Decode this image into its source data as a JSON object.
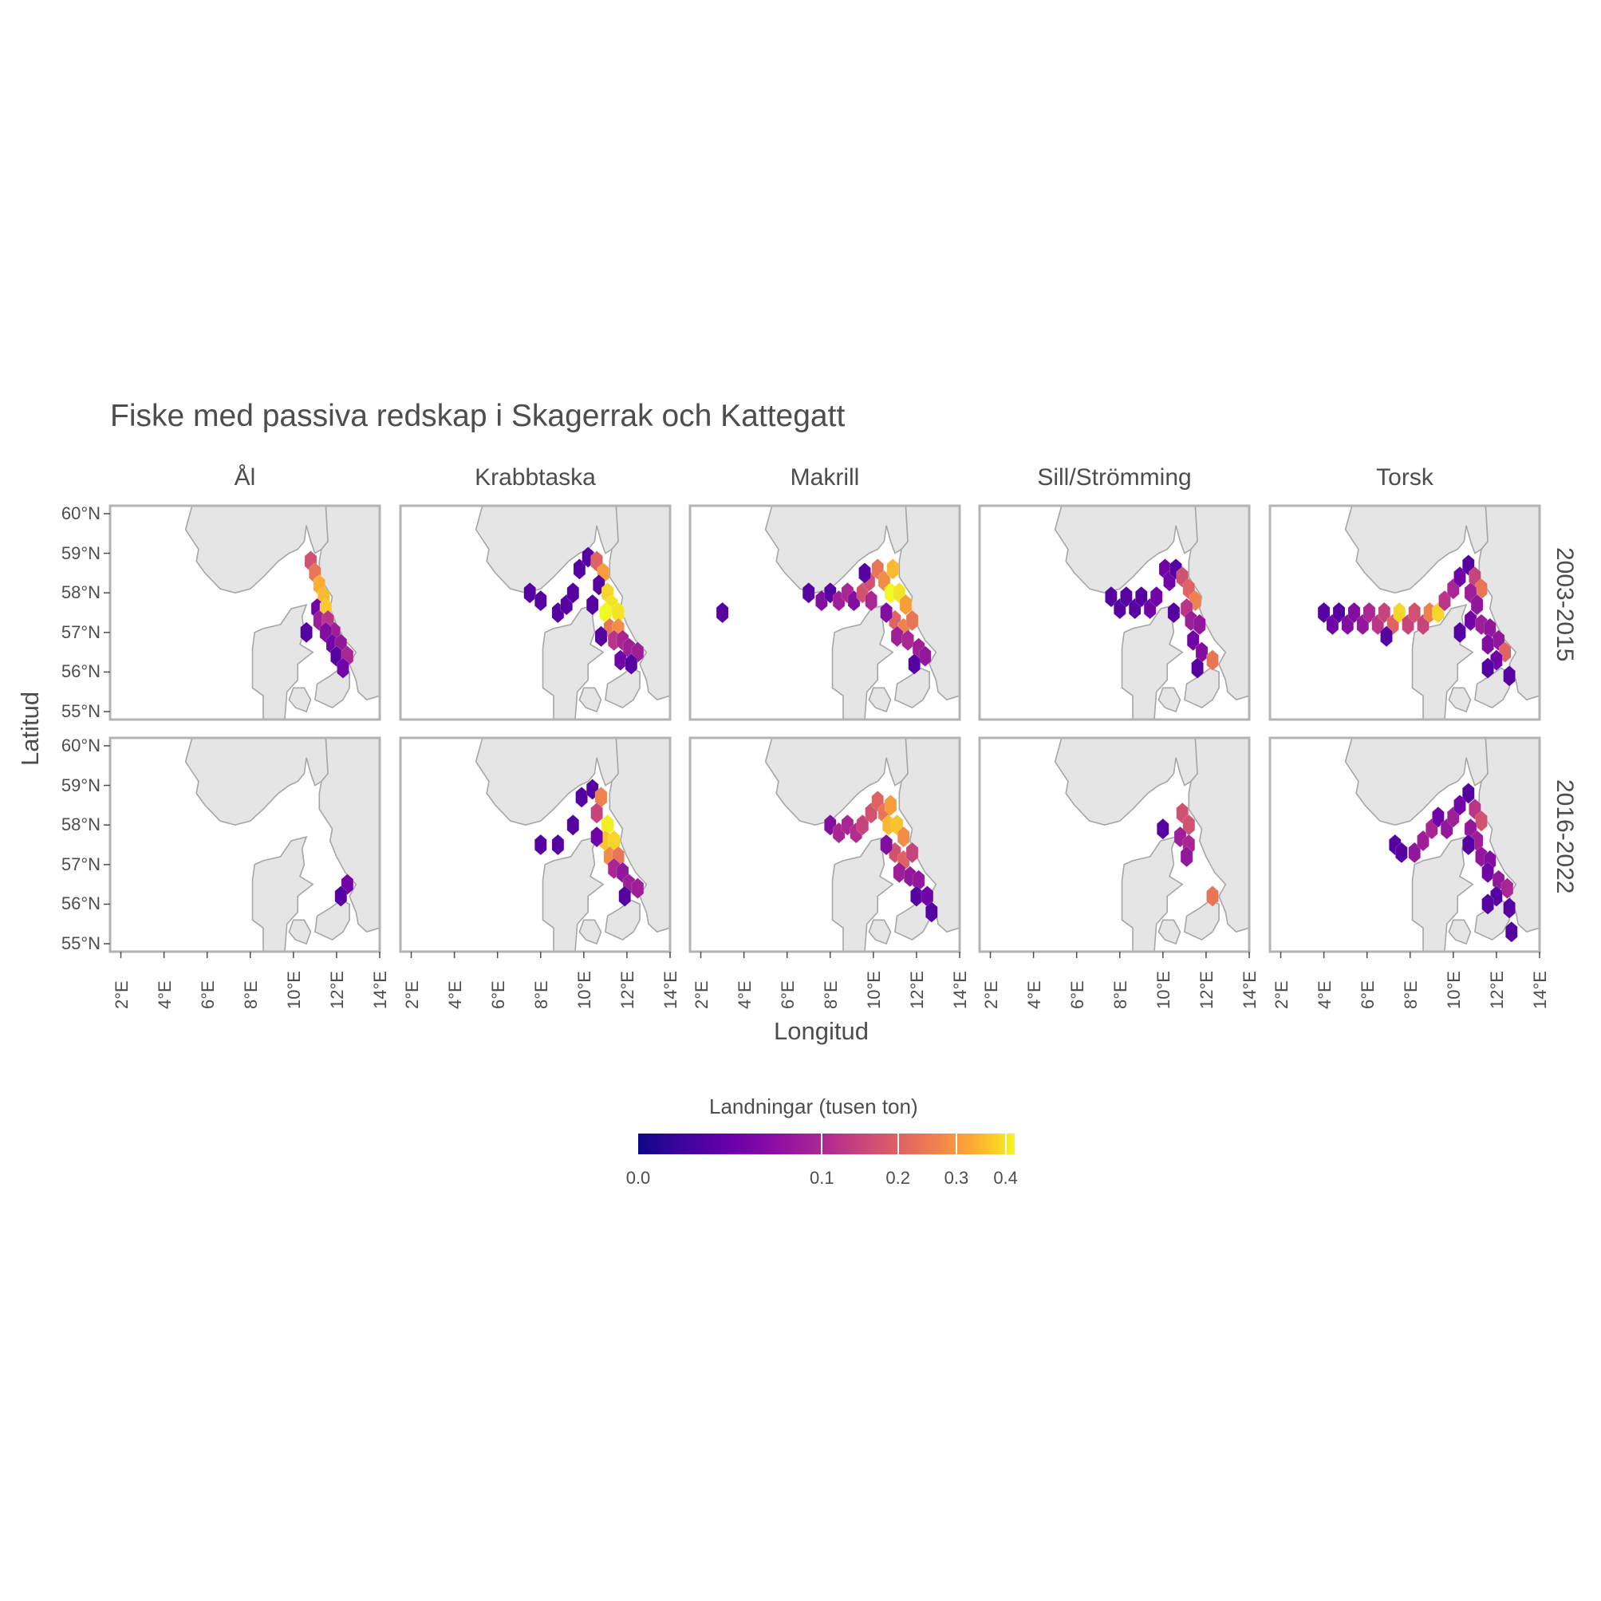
{
  "title": "Fiske med passiva redskap i Skagerrak och Kattegatt",
  "chart_data": {
    "type": "heatmap",
    "subtype": "hexbin map facets",
    "title": "Fiske med passiva redskap i Skagerrak och Kattegatt",
    "xlabel": "Longitud",
    "ylabel": "Latitud",
    "columns": [
      "Ål",
      "Krabbtaska",
      "Makrill",
      "Sill/Strömming",
      "Torsk"
    ],
    "rows": [
      "2003-2015",
      "2016-2022"
    ],
    "x_ticks": [
      "2°E",
      "4°E",
      "6°E",
      "8°E",
      "10°E",
      "12°E",
      "14°E"
    ],
    "y_ticks": [
      "55°N",
      "56°N",
      "57°N",
      "58°N",
      "59°N",
      "60°N"
    ],
    "xlim": [
      1.5,
      14
    ],
    "ylim": [
      54.8,
      60.2
    ],
    "legend": {
      "title": "Landningar (tusen ton)",
      "ticks": [
        "0.0",
        "0.1",
        "0.2",
        "0.3",
        "0.4"
      ],
      "tick_values": [
        0.0,
        0.1,
        0.2,
        0.3,
        0.4
      ],
      "range": [
        0,
        0.42
      ],
      "scale": "sqrt",
      "colormap": [
        "#0d0887",
        "#6a00a8",
        "#b12a90",
        "#e16462",
        "#fca636",
        "#f0f921"
      ],
      "placement": "bottom"
    },
    "panels": [
      {
        "species": "Ål",
        "period": "2003-2015",
        "cells": [
          [
            10.8,
            58.8,
            0.12
          ],
          [
            11.0,
            58.5,
            0.18
          ],
          [
            11.2,
            58.2,
            0.28
          ],
          [
            11.4,
            57.9,
            0.3
          ],
          [
            11.1,
            57.6,
            0.02
          ],
          [
            11.5,
            57.6,
            0.33
          ],
          [
            11.2,
            57.3,
            0.05
          ],
          [
            11.6,
            57.3,
            0.08
          ],
          [
            11.9,
            57.0,
            0.05
          ],
          [
            11.5,
            57.0,
            0.03
          ],
          [
            10.6,
            57.0,
            0.01
          ],
          [
            11.8,
            56.7,
            0.02
          ],
          [
            12.2,
            56.7,
            0.04
          ],
          [
            12.0,
            56.4,
            0.01
          ],
          [
            12.5,
            56.4,
            0.06
          ],
          [
            12.3,
            56.1,
            0.02
          ]
        ]
      },
      {
        "species": "Ål",
        "period": "2016-2022",
        "cells": [
          [
            12.5,
            56.5,
            0.02
          ],
          [
            12.2,
            56.2,
            0.01
          ]
        ]
      },
      {
        "species": "Krabbtaska",
        "period": "2003-2015",
        "cells": [
          [
            7.5,
            58.0,
            0.01
          ],
          [
            8.0,
            57.8,
            0.01
          ],
          [
            8.8,
            57.5,
            0.01
          ],
          [
            9.2,
            57.7,
            0.01
          ],
          [
            9.5,
            58.0,
            0.01
          ],
          [
            9.8,
            58.6,
            0.01
          ],
          [
            10.2,
            58.9,
            0.01
          ],
          [
            10.6,
            58.8,
            0.15
          ],
          [
            10.9,
            58.5,
            0.25
          ],
          [
            10.7,
            58.2,
            0.01
          ],
          [
            11.1,
            58.0,
            0.35
          ],
          [
            11.3,
            57.7,
            0.38
          ],
          [
            11.0,
            57.5,
            0.42
          ],
          [
            11.6,
            57.5,
            0.38
          ],
          [
            10.4,
            57.7,
            0.01
          ],
          [
            11.2,
            57.1,
            0.18
          ],
          [
            11.6,
            57.1,
            0.22
          ],
          [
            10.8,
            56.9,
            0.01
          ],
          [
            11.4,
            56.8,
            0.08
          ],
          [
            11.8,
            56.8,
            0.06
          ],
          [
            12.1,
            56.6,
            0.05
          ],
          [
            12.5,
            56.5,
            0.05
          ],
          [
            11.7,
            56.3,
            0.02
          ],
          [
            12.2,
            56.2,
            0.01
          ]
        ]
      },
      {
        "species": "Krabbtaska",
        "period": "2016-2022",
        "cells": [
          [
            8.0,
            57.5,
            0.01
          ],
          [
            8.8,
            57.5,
            0.01
          ],
          [
            9.5,
            58.0,
            0.01
          ],
          [
            9.9,
            58.7,
            0.01
          ],
          [
            10.4,
            58.9,
            0.01
          ],
          [
            10.8,
            58.7,
            0.2
          ],
          [
            10.6,
            58.3,
            0.1
          ],
          [
            11.1,
            58.0,
            0.4
          ],
          [
            11.0,
            57.6,
            0.32
          ],
          [
            11.4,
            57.6,
            0.35
          ],
          [
            10.6,
            57.7,
            0.02
          ],
          [
            11.2,
            57.2,
            0.22
          ],
          [
            11.6,
            57.2,
            0.18
          ],
          [
            11.4,
            56.9,
            0.06
          ],
          [
            11.8,
            56.8,
            0.04
          ],
          [
            12.1,
            56.5,
            0.05
          ],
          [
            12.5,
            56.4,
            0.05
          ],
          [
            11.9,
            56.2,
            0.01
          ]
        ]
      },
      {
        "species": "Makrill",
        "period": "2003-2015",
        "cells": [
          [
            3.0,
            57.5,
            0.01
          ],
          [
            7.0,
            58.0,
            0.01
          ],
          [
            7.6,
            57.8,
            0.03
          ],
          [
            8.0,
            58.0,
            0.01
          ],
          [
            8.4,
            57.8,
            0.05
          ],
          [
            8.8,
            58.0,
            0.06
          ],
          [
            9.1,
            57.8,
            0.03
          ],
          [
            9.5,
            58.0,
            0.12
          ],
          [
            9.8,
            58.3,
            0.12
          ],
          [
            10.2,
            58.6,
            0.18
          ],
          [
            10.5,
            58.3,
            0.22
          ],
          [
            10.9,
            58.6,
            0.3
          ],
          [
            10.8,
            58.0,
            0.42
          ],
          [
            11.2,
            58.0,
            0.38
          ],
          [
            11.5,
            57.7,
            0.25
          ],
          [
            11.0,
            57.3,
            0.15
          ],
          [
            11.4,
            57.1,
            0.2
          ],
          [
            11.8,
            57.3,
            0.18
          ],
          [
            11.1,
            56.9,
            0.05
          ],
          [
            11.6,
            56.8,
            0.06
          ],
          [
            12.1,
            56.6,
            0.05
          ],
          [
            12.4,
            56.4,
            0.04
          ],
          [
            11.9,
            56.2,
            0.01
          ],
          [
            10.6,
            57.5,
            0.03
          ],
          [
            9.9,
            57.8,
            0.06
          ],
          [
            9.6,
            58.5,
            0.01
          ]
        ]
      },
      {
        "species": "Makrill",
        "period": "2016-2022",
        "cells": [
          [
            8.0,
            58.0,
            0.03
          ],
          [
            8.4,
            57.8,
            0.06
          ],
          [
            8.8,
            58.0,
            0.06
          ],
          [
            9.2,
            57.8,
            0.07
          ],
          [
            9.5,
            58.0,
            0.1
          ],
          [
            9.9,
            58.3,
            0.12
          ],
          [
            10.2,
            58.6,
            0.15
          ],
          [
            10.5,
            58.3,
            0.18
          ],
          [
            10.8,
            58.5,
            0.25
          ],
          [
            10.7,
            58.0,
            0.3
          ],
          [
            11.1,
            58.0,
            0.32
          ],
          [
            11.4,
            57.7,
            0.22
          ],
          [
            11.0,
            57.3,
            0.12
          ],
          [
            11.4,
            57.1,
            0.15
          ],
          [
            11.8,
            57.3,
            0.1
          ],
          [
            11.2,
            56.8,
            0.05
          ],
          [
            11.7,
            56.7,
            0.04
          ],
          [
            12.1,
            56.6,
            0.04
          ],
          [
            12.0,
            56.2,
            0.01
          ],
          [
            12.5,
            56.2,
            0.02
          ],
          [
            12.7,
            55.8,
            0.01
          ],
          [
            10.6,
            57.5,
            0.03
          ]
        ]
      },
      {
        "species": "Sill/Strömming",
        "period": "2003-2015",
        "cells": [
          [
            7.6,
            57.9,
            0.01
          ],
          [
            8.0,
            57.6,
            0.01
          ],
          [
            8.3,
            57.9,
            0.01
          ],
          [
            8.7,
            57.6,
            0.01
          ],
          [
            9.0,
            57.9,
            0.01
          ],
          [
            9.4,
            57.6,
            0.02
          ],
          [
            9.7,
            57.9,
            0.02
          ],
          [
            10.1,
            58.6,
            0.02
          ],
          [
            10.3,
            58.3,
            0.02
          ],
          [
            10.6,
            58.6,
            0.01
          ],
          [
            10.9,
            58.4,
            0.12
          ],
          [
            11.2,
            58.1,
            0.15
          ],
          [
            11.5,
            57.8,
            0.2
          ],
          [
            11.1,
            57.6,
            0.08
          ],
          [
            11.3,
            57.3,
            0.05
          ],
          [
            11.7,
            57.2,
            0.04
          ],
          [
            10.5,
            57.5,
            0.01
          ],
          [
            11.4,
            56.8,
            0.02
          ],
          [
            11.8,
            56.5,
            0.03
          ],
          [
            12.3,
            56.3,
            0.18
          ],
          [
            11.6,
            56.1,
            0.01
          ]
        ]
      },
      {
        "species": "Sill/Strömming",
        "period": "2016-2022",
        "cells": [
          [
            10.0,
            57.9,
            0.01
          ],
          [
            10.9,
            58.3,
            0.12
          ],
          [
            11.2,
            58.0,
            0.12
          ],
          [
            10.8,
            57.7,
            0.05
          ],
          [
            11.2,
            57.5,
            0.06
          ],
          [
            11.1,
            57.2,
            0.04
          ],
          [
            12.3,
            56.2,
            0.18
          ]
        ]
      },
      {
        "species": "Torsk",
        "period": "2003-2015",
        "cells": [
          [
            4.0,
            57.5,
            0.01
          ],
          [
            4.4,
            57.2,
            0.02
          ],
          [
            4.7,
            57.5,
            0.01
          ],
          [
            5.1,
            57.2,
            0.03
          ],
          [
            5.4,
            57.5,
            0.03
          ],
          [
            5.8,
            57.2,
            0.04
          ],
          [
            6.1,
            57.5,
            0.06
          ],
          [
            6.5,
            57.2,
            0.08
          ],
          [
            6.8,
            57.5,
            0.1
          ],
          [
            7.2,
            57.2,
            0.15
          ],
          [
            7.5,
            57.5,
            0.35
          ],
          [
            7.9,
            57.2,
            0.1
          ],
          [
            8.2,
            57.5,
            0.12
          ],
          [
            8.6,
            57.2,
            0.1
          ],
          [
            8.9,
            57.5,
            0.2
          ],
          [
            9.3,
            57.5,
            0.35
          ],
          [
            9.6,
            57.8,
            0.08
          ],
          [
            10.0,
            58.1,
            0.06
          ],
          [
            10.3,
            58.4,
            0.02
          ],
          [
            10.7,
            58.7,
            0.01
          ],
          [
            11.0,
            58.4,
            0.1
          ],
          [
            11.3,
            58.1,
            0.18
          ],
          [
            10.8,
            58.0,
            0.05
          ],
          [
            11.1,
            57.7,
            0.04
          ],
          [
            10.8,
            57.3,
            0.02
          ],
          [
            11.3,
            57.2,
            0.05
          ],
          [
            11.7,
            57.1,
            0.04
          ],
          [
            12.1,
            56.8,
            0.04
          ],
          [
            11.6,
            56.7,
            0.03
          ],
          [
            12.4,
            56.5,
            0.15
          ],
          [
            12.0,
            56.3,
            0.02
          ],
          [
            11.6,
            56.1,
            0.01
          ],
          [
            12.6,
            55.9,
            0.01
          ],
          [
            6.9,
            56.9,
            0.01
          ],
          [
            10.3,
            57.0,
            0.01
          ]
        ]
      },
      {
        "species": "Torsk",
        "period": "2016-2022",
        "cells": [
          [
            7.3,
            57.5,
            0.01
          ],
          [
            7.6,
            57.3,
            0.01
          ],
          [
            8.2,
            57.3,
            0.04
          ],
          [
            8.6,
            57.6,
            0.05
          ],
          [
            9.0,
            57.9,
            0.06
          ],
          [
            9.3,
            58.2,
            0.02
          ],
          [
            9.7,
            57.9,
            0.04
          ],
          [
            10.0,
            58.2,
            0.05
          ],
          [
            10.3,
            58.5,
            0.02
          ],
          [
            10.7,
            58.8,
            0.01
          ],
          [
            11.0,
            58.4,
            0.08
          ],
          [
            11.3,
            58.1,
            0.12
          ],
          [
            10.8,
            57.9,
            0.04
          ],
          [
            11.1,
            57.6,
            0.05
          ],
          [
            10.7,
            57.5,
            0.01
          ],
          [
            11.3,
            57.2,
            0.04
          ],
          [
            11.7,
            57.1,
            0.03
          ],
          [
            11.6,
            56.8,
            0.02
          ],
          [
            12.1,
            56.6,
            0.04
          ],
          [
            12.5,
            56.4,
            0.06
          ],
          [
            12.0,
            56.2,
            0.01
          ],
          [
            11.6,
            56.0,
            0.01
          ],
          [
            12.6,
            55.9,
            0.01
          ],
          [
            12.7,
            55.3,
            0.01
          ]
        ]
      }
    ]
  }
}
